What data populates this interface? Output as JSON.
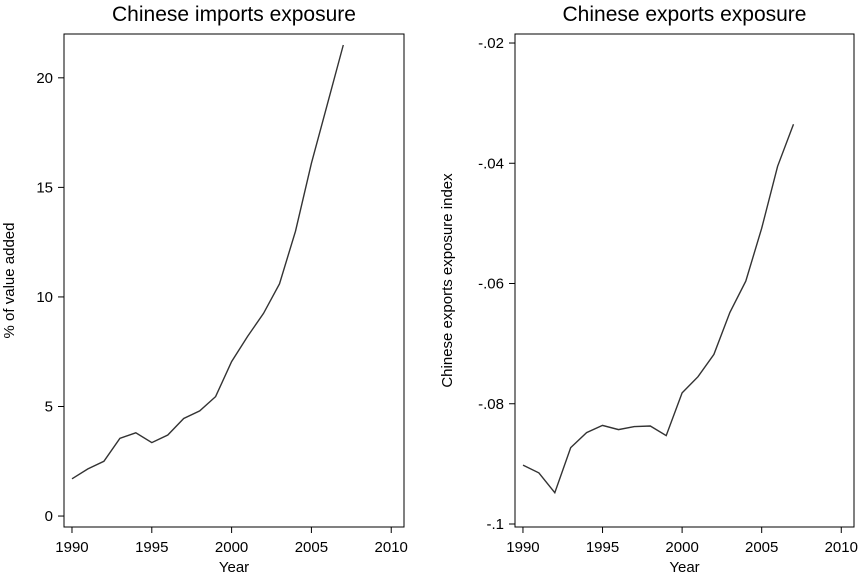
{
  "chart_data": [
    {
      "type": "line",
      "title": "Chinese imports exposure",
      "xlabel": "Year",
      "ylabel": "% of value added",
      "xlim": [
        1989.5,
        2010.8
      ],
      "ylim": [
        -0.5,
        22
      ],
      "xticks": [
        1990,
        1995,
        2000,
        2005,
        2010
      ],
      "xtick_labels": [
        "1990",
        "1995",
        "2000",
        "2005",
        "2010"
      ],
      "yticks": [
        0,
        5,
        10,
        15,
        20
      ],
      "ytick_labels": [
        "0",
        "5",
        "10",
        "15",
        "20"
      ],
      "grid": false,
      "series": [
        {
          "x": [
            1990,
            1991,
            1992,
            1993,
            1994,
            1995,
            1996,
            1997,
            1998,
            1999,
            2000,
            2001,
            2002,
            2003,
            2004,
            2005,
            2006,
            2007
          ],
          "values": [
            1.7,
            2.15,
            2.5,
            3.55,
            3.8,
            3.35,
            3.7,
            4.45,
            4.8,
            5.45,
            7.05,
            8.2,
            9.25,
            10.6,
            13.0,
            16.1,
            18.8,
            21.5
          ]
        }
      ]
    },
    {
      "type": "line",
      "title": "Chinese exports exposure",
      "xlabel": "Year",
      "ylabel": "Chinese exports exposure index",
      "xlim": [
        1989.5,
        2010.8
      ],
      "ylim": [
        -0.1005,
        -0.0185
      ],
      "xticks": [
        1990,
        1995,
        2000,
        2005,
        2010
      ],
      "xtick_labels": [
        "1990",
        "1995",
        "2000",
        "2005",
        "2010"
      ],
      "yticks": [
        -0.1,
        -0.08,
        -0.06,
        -0.04,
        -0.02
      ],
      "ytick_labels": [
        "-.1",
        "-.08",
        "-.06",
        "-.04",
        "-.02"
      ],
      "grid": false,
      "series": [
        {
          "x": [
            1990,
            1991,
            1992,
            1993,
            1994,
            1995,
            1996,
            1997,
            1998,
            1999,
            2000,
            2001,
            2002,
            2003,
            2004,
            2005,
            2006,
            2007
          ],
          "values": [
            -0.0902,
            -0.0915,
            -0.0948,
            -0.0873,
            -0.0848,
            -0.0836,
            -0.0843,
            -0.0838,
            -0.0837,
            -0.0853,
            -0.0782,
            -0.0755,
            -0.0718,
            -0.0648,
            -0.0596,
            -0.0508,
            -0.0405,
            -0.0335
          ]
        }
      ]
    }
  ]
}
